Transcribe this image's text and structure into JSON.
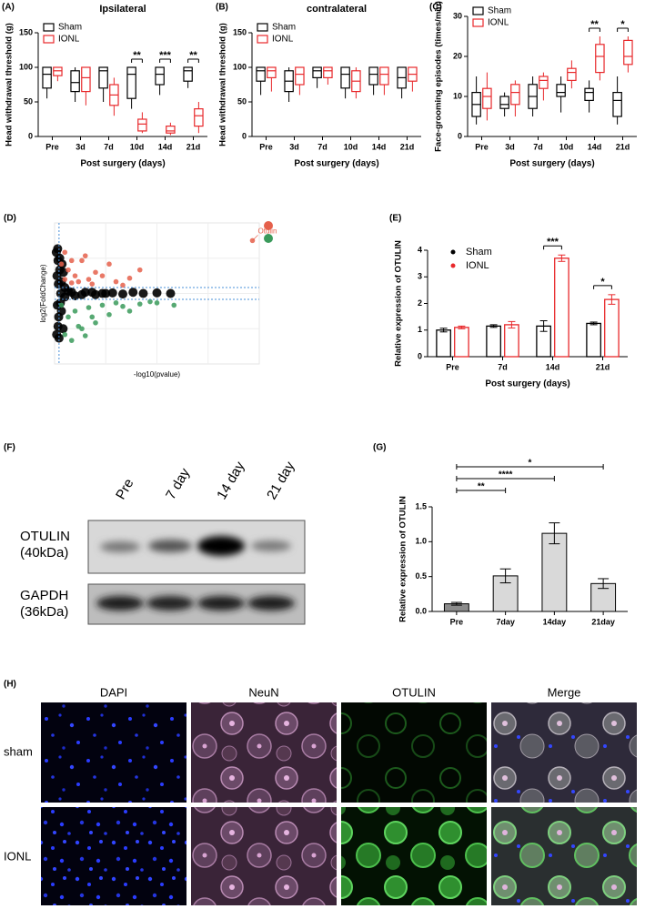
{
  "chart_data": [
    {
      "type": "box",
      "panel": "(A)",
      "title": "Ipsilateral",
      "y_label": "Head withdrawal threshold (g)",
      "x_label": "Post surgery (days)",
      "categories": [
        "Pre",
        "3d",
        "7d",
        "10d",
        "14d",
        "21d"
      ],
      "series": [
        {
          "name": "Sham",
          "color": "#000000",
          "values": [
            [
              55,
              70,
              90,
              100,
              100
            ],
            [
              50,
              65,
              78,
              95,
              100
            ],
            [
              50,
              70,
              95,
              100,
              100
            ],
            [
              40,
              55,
              90,
              100,
              100
            ],
            [
              60,
              75,
              90,
              100,
              100
            ],
            [
              70,
              80,
              95,
              100,
              100
            ]
          ]
        },
        {
          "name": "IONL",
          "color": "#e8282b",
          "values": [
            [
              80,
              88,
              95,
              100,
              100
            ],
            [
              45,
              65,
              85,
              100,
              100
            ],
            [
              30,
              45,
              60,
              75,
              85
            ],
            [
              5,
              8,
              18,
              25,
              35
            ],
            [
              2,
              5,
              8,
              15,
              20
            ],
            [
              5,
              15,
              30,
              40,
              50
            ]
          ]
        }
      ],
      "significance": [
        null,
        null,
        null,
        "**",
        "***",
        "**"
      ],
      "ylim": [
        0,
        150
      ],
      "yticks": [
        0,
        50,
        100,
        150
      ]
    },
    {
      "type": "box",
      "panel": "(B)",
      "title": "contralateral",
      "y_label": "Head withdrawal threshold (g)",
      "x_label": "Post surgery (days)",
      "categories": [
        "Pre",
        "3d",
        "7d",
        "10d",
        "14d",
        "21d"
      ],
      "series": [
        {
          "name": "Sham",
          "color": "#000000",
          "values": [
            [
              60,
              80,
              95,
              100,
              100
            ],
            [
              50,
              65,
              80,
              95,
              100
            ],
            [
              70,
              85,
              95,
              100,
              100
            ],
            [
              55,
              70,
              90,
              100,
              100
            ],
            [
              60,
              75,
              90,
              100,
              100
            ],
            [
              55,
              70,
              85,
              100,
              100
            ]
          ]
        },
        {
          "name": "IONL",
          "color": "#e8282b",
          "values": [
            [
              65,
              85,
              95,
              100,
              100
            ],
            [
              60,
              75,
              90,
              100,
              100
            ],
            [
              75,
              85,
              95,
              100,
              100
            ],
            [
              55,
              65,
              80,
              95,
              100
            ],
            [
              60,
              75,
              90,
              100,
              100
            ],
            [
              65,
              80,
              90,
              100,
              100
            ]
          ]
        }
      ],
      "ylim": [
        0,
        150
      ],
      "yticks": [
        0,
        50,
        100,
        150
      ]
    },
    {
      "type": "box",
      "panel": "(C)",
      "y_label": "Face-grooming episodes (times/min)",
      "x_label": "Post surgery (days)",
      "categories": [
        "Pre",
        "3d",
        "7d",
        "10d",
        "14d",
        "21d"
      ],
      "series": [
        {
          "name": "Sham",
          "color": "#000000",
          "values": [
            [
              3,
              5,
              8,
              11,
              15
            ],
            [
              5,
              7,
              8,
              10,
              11
            ],
            [
              5,
              7,
              10,
              13,
              15
            ],
            [
              6,
              10,
              11,
              13,
              15
            ],
            [
              6,
              9,
              11,
              12,
              14
            ],
            [
              3,
              5,
              9,
              11,
              15
            ]
          ]
        },
        {
          "name": "IONL",
          "color": "#e8282b",
          "values": [
            [
              4,
              7,
              10,
              12,
              16
            ],
            [
              5,
              8,
              11,
              13,
              14
            ],
            [
              9,
              12,
              14,
              15,
              16
            ],
            [
              12,
              14,
              16,
              17,
              19
            ],
            [
              14,
              16,
              20,
              23,
              25
            ],
            [
              16,
              18,
              20,
              24,
              25
            ]
          ]
        }
      ],
      "significance": [
        null,
        null,
        null,
        null,
        "**",
        "*"
      ],
      "ylim": [
        0,
        30
      ],
      "yticks": [
        0,
        10,
        20,
        30
      ]
    },
    {
      "type": "scatter",
      "panel": "(D)",
      "y_label": "log2(FoldChange)",
      "x_label": "-log10(pvalue)",
      "xlim": [
        0,
        60
      ],
      "ylim": [
        -6,
        6
      ],
      "threshold_x": 1.3,
      "threshold_y": [
        -0.5,
        0.5
      ],
      "annotation": "Otulin",
      "series": [
        {
          "color": "#000000",
          "x": [
            0.5,
            1,
            1.5,
            2,
            0.8,
            1.2,
            2.5,
            3,
            0.6,
            1.8,
            2.2,
            1,
            1.5,
            0.7,
            2,
            3,
            5,
            8,
            11,
            14,
            17,
            20,
            23,
            26,
            30,
            34,
            4,
            6,
            9,
            12,
            15,
            1.3,
            0.9,
            2.6,
            1.1,
            1.7
          ],
          "values": [
            3.5,
            2.8,
            2,
            1,
            -1,
            -2,
            -3,
            0.5,
            -3.5,
            0,
            2.5,
            -2.8,
            3,
            1.5,
            -1.5,
            -0.3,
            0.1,
            -0.1,
            0.1,
            0,
            0.05,
            -0.05,
            0.1,
            0,
            0.05,
            0,
            0.2,
            -0.2,
            0.1,
            -0.1,
            0,
            -3.8,
            3.8,
            1.8,
            0.8,
            -0.8
          ]
        },
        {
          "color": "#e5604b",
          "x": [
            2,
            4,
            6,
            8,
            10,
            12,
            3,
            5,
            7,
            9,
            14,
            16,
            18,
            22,
            25,
            3,
            5,
            11,
            20,
            58
          ],
          "values": [
            2.5,
            2,
            1.5,
            2.8,
            1.2,
            1.8,
            1.2,
            0.9,
            1,
            3.2,
            1.5,
            2.5,
            1,
            1.3,
            2,
            3.5,
            2.8,
            0.8,
            0.7,
            4.5
          ]
        },
        {
          "color": "#3a9a5b",
          "x": [
            2,
            4,
            6,
            8,
            10,
            12,
            14,
            16,
            20,
            25,
            30,
            35,
            3,
            5,
            7,
            9,
            11,
            18,
            22,
            28
          ],
          "values": [
            -1,
            -2,
            -1.5,
            -3,
            -1.2,
            -2.5,
            -1,
            -1.8,
            -1.1,
            -0.9,
            -0.8,
            -1,
            -3.5,
            -4,
            -2.8,
            -3.6,
            -2,
            -0.8,
            -1.5,
            -0.7
          ]
        }
      ]
    },
    {
      "type": "grouped_bar",
      "panel": "(E)",
      "y_label": "Relative expression of OTULIN",
      "x_label": "Post surgery (days)",
      "categories": [
        "Pre",
        "7d",
        "14d",
        "21d"
      ],
      "series": [
        {
          "name": "Sham",
          "color": "#000000",
          "values": [
            1,
            1.15,
            1.15,
            1.25
          ],
          "errors": [
            0.07,
            0.05,
            0.2,
            0.05
          ]
        },
        {
          "name": "IONL",
          "color": "#e8282b",
          "values": [
            1.1,
            1.2,
            3.7,
            2.15
          ],
          "errors": [
            0.05,
            0.12,
            0.12,
            0.18
          ]
        }
      ],
      "significance": [
        null,
        null,
        "***",
        "*"
      ],
      "ylim": [
        0,
        4
      ],
      "yticks": [
        0,
        1,
        2,
        3,
        4
      ]
    },
    {
      "type": "bar",
      "panel": "(G)",
      "y_label": "Relative expression of OTULIN",
      "categories": [
        "Pre",
        "7day",
        "14day",
        "21day"
      ],
      "values": [
        0.11,
        0.51,
        1.12,
        0.4
      ],
      "errors": [
        0.02,
        0.1,
        0.15,
        0.07
      ],
      "colors": [
        "#8c8c8c",
        "#d9d9d9",
        "#d9d9d9",
        "#d9d9d9"
      ],
      "significance": [
        null,
        "**",
        "****",
        "*"
      ],
      "ylim": [
        0,
        1.5
      ],
      "yticks": [
        {
          "value": 0,
          "label": "0.0"
        },
        {
          "value": 0.5,
          "label": "0.5"
        },
        {
          "value": 1,
          "label": "1.0"
        },
        {
          "value": 1.5,
          "label": "1.5"
        }
      ]
    }
  ],
  "blot": {
    "panel": "(F)",
    "lanes": [
      "Pre",
      "7 day",
      "14 day",
      "21 day"
    ],
    "rows": [
      [
        "OTULIN",
        "(40kDa)"
      ],
      [
        "GAPDH",
        "(36kDa)"
      ]
    ]
  },
  "micrograph": {
    "panel": "(H)",
    "columns": [
      "DAPI",
      "NeuN",
      "OTULIN",
      "Merge"
    ],
    "rows": [
      "sham",
      "IONL"
    ]
  }
}
